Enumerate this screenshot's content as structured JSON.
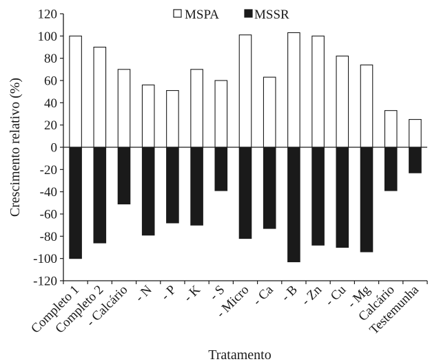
{
  "chart_data": {
    "type": "bar",
    "xlabel": "Tratamento",
    "ylabel": "Crescimento relativo (%)",
    "ylim": [
      -120,
      120
    ],
    "yticks": [
      120,
      100,
      80,
      60,
      40,
      20,
      0,
      -20,
      -40,
      -60,
      -80,
      -100,
      -120
    ],
    "categories": [
      "Completo 1",
      "Completo 2",
      "- Calcário",
      "- N",
      "- P",
      "- K",
      "- S",
      "- Micro",
      "- Ca",
      "- B",
      "- Zn",
      "- Cu",
      "- Mg",
      "Calcário",
      "Testemunha"
    ],
    "series": [
      {
        "name": "MSPA",
        "color": "#ffffff",
        "stroke": "#1a1a1a",
        "values": [
          100,
          90,
          70,
          56,
          51,
          70,
          60,
          101,
          63,
          103,
          100,
          82,
          74,
          33,
          25
        ]
      },
      {
        "name": "MSSR",
        "color": "#1a1a1a",
        "stroke": "#1a1a1a",
        "values": [
          -100,
          -86,
          -51,
          -79,
          -68,
          -70,
          -39,
          -82,
          -73,
          -103,
          -88,
          -90,
          -94,
          -39,
          -23
        ]
      }
    ],
    "legend": "top-center",
    "grid": false
  }
}
